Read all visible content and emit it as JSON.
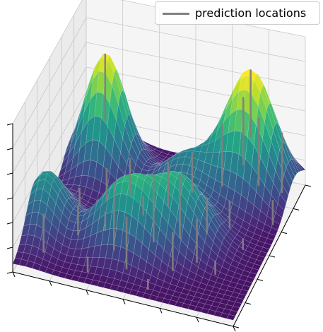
{
  "chart_data": {
    "type": "surface3d",
    "title": "",
    "xlabel": "",
    "ylabel": "",
    "zlabel": "",
    "tick_labels_visible": false,
    "grid": true,
    "colormap": "viridis",
    "xlim": [
      0,
      1
    ],
    "ylim": [
      0,
      1
    ],
    "zlim": [
      0,
      1
    ],
    "surface": {
      "description_free": true,
      "components": [
        {
          "amp": 0.95,
          "x": 0.16,
          "y": 0.78,
          "sx": 0.09,
          "sy": 0.1
        },
        {
          "amp": 0.97,
          "x": 0.8,
          "y": 0.85,
          "sx": 0.11,
          "sy": 0.11
        },
        {
          "amp": 0.55,
          "x": 0.42,
          "y": 0.28,
          "sx": 0.13,
          "sy": 0.09
        },
        {
          "amp": 0.5,
          "x": 0.62,
          "y": 0.42,
          "sx": 0.12,
          "sy": 0.1
        },
        {
          "amp": 0.45,
          "x": 0.05,
          "y": 0.3,
          "sx": 0.08,
          "sy": 0.12
        },
        {
          "amp": 0.35,
          "x": 0.55,
          "y": 0.7,
          "sx": 0.12,
          "sy": 0.1
        }
      ],
      "base": 0.05
    },
    "series": [
      {
        "name": "prediction locations",
        "type": "vertical_lines",
        "color": "#808080",
        "points": [
          {
            "x": 0.16,
            "y": 0.78
          },
          {
            "x": 0.22,
            "y": 0.62
          },
          {
            "x": 0.3,
            "y": 0.7
          },
          {
            "x": 0.12,
            "y": 0.55
          },
          {
            "x": 0.4,
            "y": 0.58
          },
          {
            "x": 0.48,
            "y": 0.68
          },
          {
            "x": 0.55,
            "y": 0.8
          },
          {
            "x": 0.66,
            "y": 0.88
          },
          {
            "x": 0.74,
            "y": 0.93
          },
          {
            "x": 0.8,
            "y": 0.85
          },
          {
            "x": 0.86,
            "y": 0.78
          },
          {
            "x": 0.92,
            "y": 0.92
          },
          {
            "x": 0.95,
            "y": 0.7
          },
          {
            "x": 0.18,
            "y": 0.35
          },
          {
            "x": 0.28,
            "y": 0.42
          },
          {
            "x": 0.36,
            "y": 0.3
          },
          {
            "x": 0.45,
            "y": 0.2
          },
          {
            "x": 0.52,
            "y": 0.36
          },
          {
            "x": 0.6,
            "y": 0.48
          },
          {
            "x": 0.7,
            "y": 0.55
          },
          {
            "x": 0.78,
            "y": 0.62
          },
          {
            "x": 0.88,
            "y": 0.5
          },
          {
            "x": 0.64,
            "y": 0.26
          },
          {
            "x": 0.72,
            "y": 0.35
          },
          {
            "x": 0.82,
            "y": 0.3
          },
          {
            "x": 0.08,
            "y": 0.18
          },
          {
            "x": 0.3,
            "y": 0.12
          },
          {
            "x": 0.58,
            "y": 0.1
          }
        ]
      }
    ],
    "legend": {
      "position": "top-right",
      "entries": [
        "prediction locations"
      ]
    }
  },
  "legend": {
    "label": "prediction locations"
  }
}
